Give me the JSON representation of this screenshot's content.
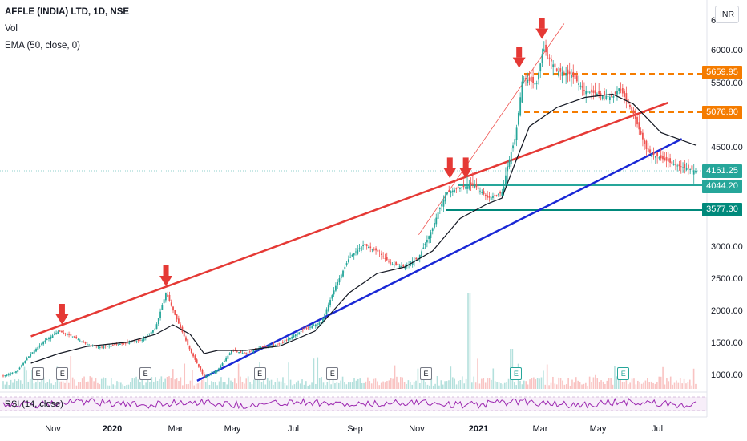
{
  "header": {
    "title": "AFFLE (INDIA) LTD, 1D, NSE",
    "volume_label": "Vol",
    "ema_label": "EMA (50, close, 0)",
    "rsi_label": "RSI (14, close)",
    "currency": "INR"
  },
  "price_tags": [
    {
      "label": "5659.95",
      "color": "#f57c00"
    },
    {
      "label": "5076.80",
      "color": "#f57c00"
    },
    {
      "label": "4161.25",
      "color": "#26a69a"
    },
    {
      "label": "4044.20",
      "color": "#26a69a"
    },
    {
      "label": "3577.30",
      "color": "#00897b"
    }
  ],
  "earnings_badge": "E",
  "colors": {
    "up": "#26a69a",
    "down": "#ef5350",
    "resistance_line": "#e53935",
    "support_line": "#1a28d6",
    "arrow": "#e53935",
    "ema": "#131722",
    "rsi": "#9c27b0",
    "orange_level": "#f57c00",
    "green_level": "#26a69a",
    "teal_level": "#00897b"
  },
  "chart_data": {
    "type": "candlestick",
    "symbol": "AFFLE (INDIA) LTD",
    "interval": "1D",
    "exchange": "NSE",
    "y_ticks": [
      "6000.00",
      "5500.00",
      "4500.00",
      "3000.00",
      "2500.00",
      "2000.00",
      "1500.00",
      "1000.00"
    ],
    "x_ticks": [
      "Nov",
      "2020",
      "Mar",
      "May",
      "Jul",
      "Sep",
      "Nov",
      "2021",
      "Mar",
      "May",
      "Jul"
    ],
    "x_ticks_bold": [
      "2020",
      "2021"
    ],
    "ylim": [
      850,
      6600
    ],
    "price_path": [
      [
        0,
        1000
      ],
      [
        0.02,
        1080
      ],
      [
        0.04,
        1350
      ],
      [
        0.06,
        1550
      ],
      [
        0.08,
        1700
      ],
      [
        0.1,
        1620
      ],
      [
        0.12,
        1500
      ],
      [
        0.14,
        1450
      ],
      [
        0.17,
        1500
      ],
      [
        0.2,
        1560
      ],
      [
        0.22,
        1750
      ],
      [
        0.235,
        2300
      ],
      [
        0.25,
        1900
      ],
      [
        0.27,
        1400
      ],
      [
        0.29,
        980
      ],
      [
        0.31,
        1100
      ],
      [
        0.33,
        1400
      ],
      [
        0.35,
        1350
      ],
      [
        0.37,
        1440
      ],
      [
        0.4,
        1500
      ],
      [
        0.43,
        1700
      ],
      [
        0.46,
        1850
      ],
      [
        0.48,
        2400
      ],
      [
        0.5,
        2850
      ],
      [
        0.52,
        3050
      ],
      [
        0.54,
        2950
      ],
      [
        0.56,
        2750
      ],
      [
        0.58,
        2700
      ],
      [
        0.6,
        2850
      ],
      [
        0.62,
        3300
      ],
      [
        0.64,
        3900
      ],
      [
        0.66,
        4000
      ],
      [
        0.68,
        4050
      ],
      [
        0.7,
        3800
      ],
      [
        0.72,
        3900
      ],
      [
        0.74,
        4700
      ],
      [
        0.75,
        5600
      ],
      [
        0.77,
        5500
      ],
      [
        0.78,
        6050
      ],
      [
        0.8,
        5700
      ],
      [
        0.82,
        5650
      ],
      [
        0.84,
        5400
      ],
      [
        0.86,
        5350
      ],
      [
        0.88,
        5300
      ],
      [
        0.89,
        5450
      ],
      [
        0.91,
        5050
      ],
      [
        0.93,
        4450
      ],
      [
        0.95,
        4350
      ],
      [
        0.97,
        4250
      ],
      [
        1.0,
        4161.25
      ]
    ],
    "ema_path": [
      [
        0.04,
        1200
      ],
      [
        0.08,
        1350
      ],
      [
        0.12,
        1460
      ],
      [
        0.18,
        1530
      ],
      [
        0.22,
        1650
      ],
      [
        0.245,
        1800
      ],
      [
        0.27,
        1650
      ],
      [
        0.29,
        1350
      ],
      [
        0.31,
        1400
      ],
      [
        0.35,
        1400
      ],
      [
        0.4,
        1470
      ],
      [
        0.45,
        1700
      ],
      [
        0.5,
        2300
      ],
      [
        0.54,
        2600
      ],
      [
        0.58,
        2700
      ],
      [
        0.62,
        2950
      ],
      [
        0.66,
        3450
      ],
      [
        0.7,
        3700
      ],
      [
        0.72,
        3800
      ],
      [
        0.74,
        4300
      ],
      [
        0.76,
        4850
      ],
      [
        0.8,
        5150
      ],
      [
        0.84,
        5300
      ],
      [
        0.88,
        5350
      ],
      [
        0.91,
        5200
      ],
      [
        0.95,
        4750
      ],
      [
        1.0,
        4550
      ]
    ],
    "horizontal_levels": [
      {
        "value": 5659.95,
        "style": "dashed",
        "color": "orange"
      },
      {
        "value": 5076.8,
        "style": "dashed",
        "color": "orange"
      },
      {
        "value": 4044.2,
        "style": "solid",
        "color": "green"
      },
      {
        "value": 3577.3,
        "style": "solid",
        "color": "teal"
      }
    ],
    "trendlines": [
      {
        "name": "resistance",
        "from": [
          0.04,
          1620
        ],
        "to": [
          0.96,
          5220
        ]
      },
      {
        "name": "support",
        "from": [
          0.28,
          920
        ],
        "to": [
          0.98,
          4650
        ]
      },
      {
        "name": "steep",
        "from": [
          0.6,
          3200
        ],
        "to": [
          0.81,
          6450
        ]
      }
    ],
    "arrow_marks": [
      {
        "t": 0.085,
        "price": 1800
      },
      {
        "t": 0.235,
        "price": 2400
      },
      {
        "t": 0.645,
        "price": 4100
      },
      {
        "t": 0.668,
        "price": 4100
      },
      {
        "t": 0.745,
        "price": 5750
      },
      {
        "t": 0.778,
        "price": 6200
      }
    ],
    "earnings_events": [
      {
        "t": 0.05,
        "highlight": false
      },
      {
        "t": 0.085,
        "highlight": false
      },
      {
        "t": 0.205,
        "highlight": false
      },
      {
        "t": 0.37,
        "highlight": false
      },
      {
        "t": 0.475,
        "highlight": false
      },
      {
        "t": 0.61,
        "highlight": false
      },
      {
        "t": 0.74,
        "highlight": true
      },
      {
        "t": 0.895,
        "highlight": true
      }
    ]
  }
}
